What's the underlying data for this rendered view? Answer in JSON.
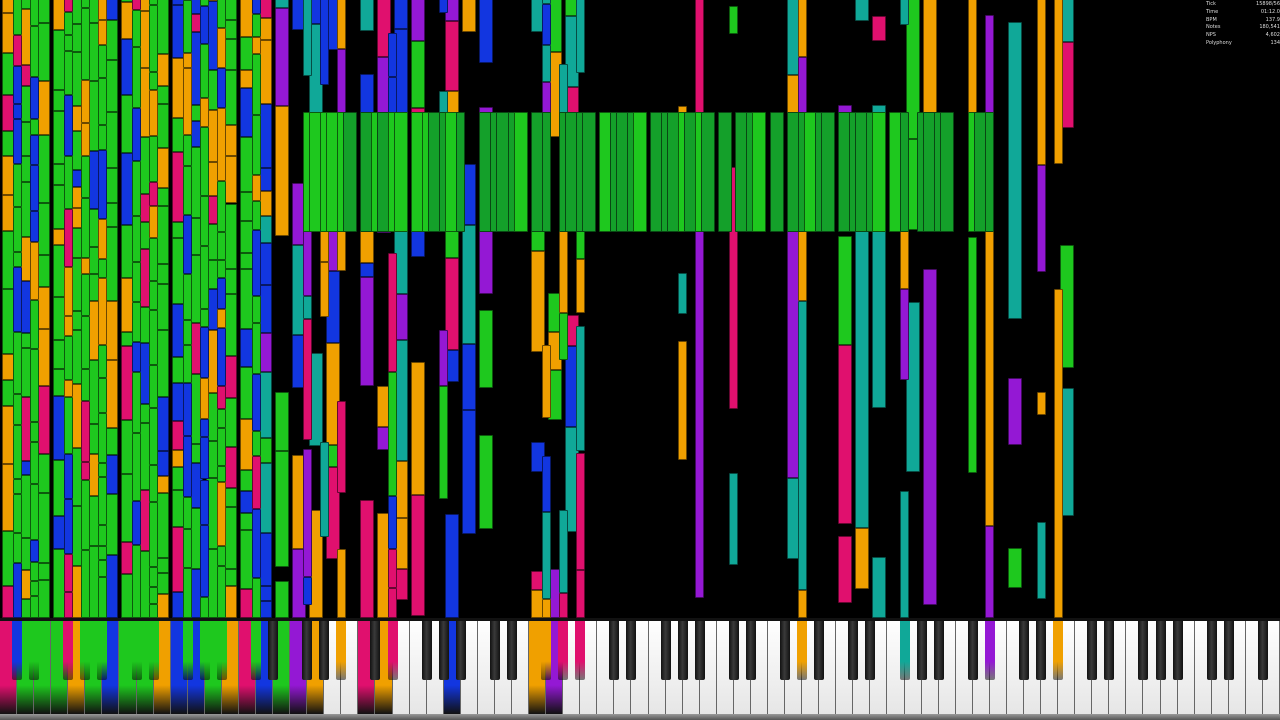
{
  "stats": [
    {
      "label": "Tick",
      "value": "15898/56"
    },
    {
      "label": "Time",
      "value": "01:12.0"
    },
    {
      "label": "BPM",
      "value": "137.9"
    },
    {
      "label": "Notes",
      "value": "180,541"
    },
    {
      "label": "NPS",
      "value": "4,602"
    },
    {
      "label": "Polyphony",
      "value": "134"
    }
  ],
  "keyboard": {
    "keys": 128
  },
  "palette": {
    "green": "#1ec81e",
    "dark_green": "#14a02a",
    "blue": "#1236e0",
    "orange": "#f0a000",
    "magenta": "#e0106e",
    "purple": "#9418d4",
    "teal": "#10a898",
    "background": "#000000"
  }
}
